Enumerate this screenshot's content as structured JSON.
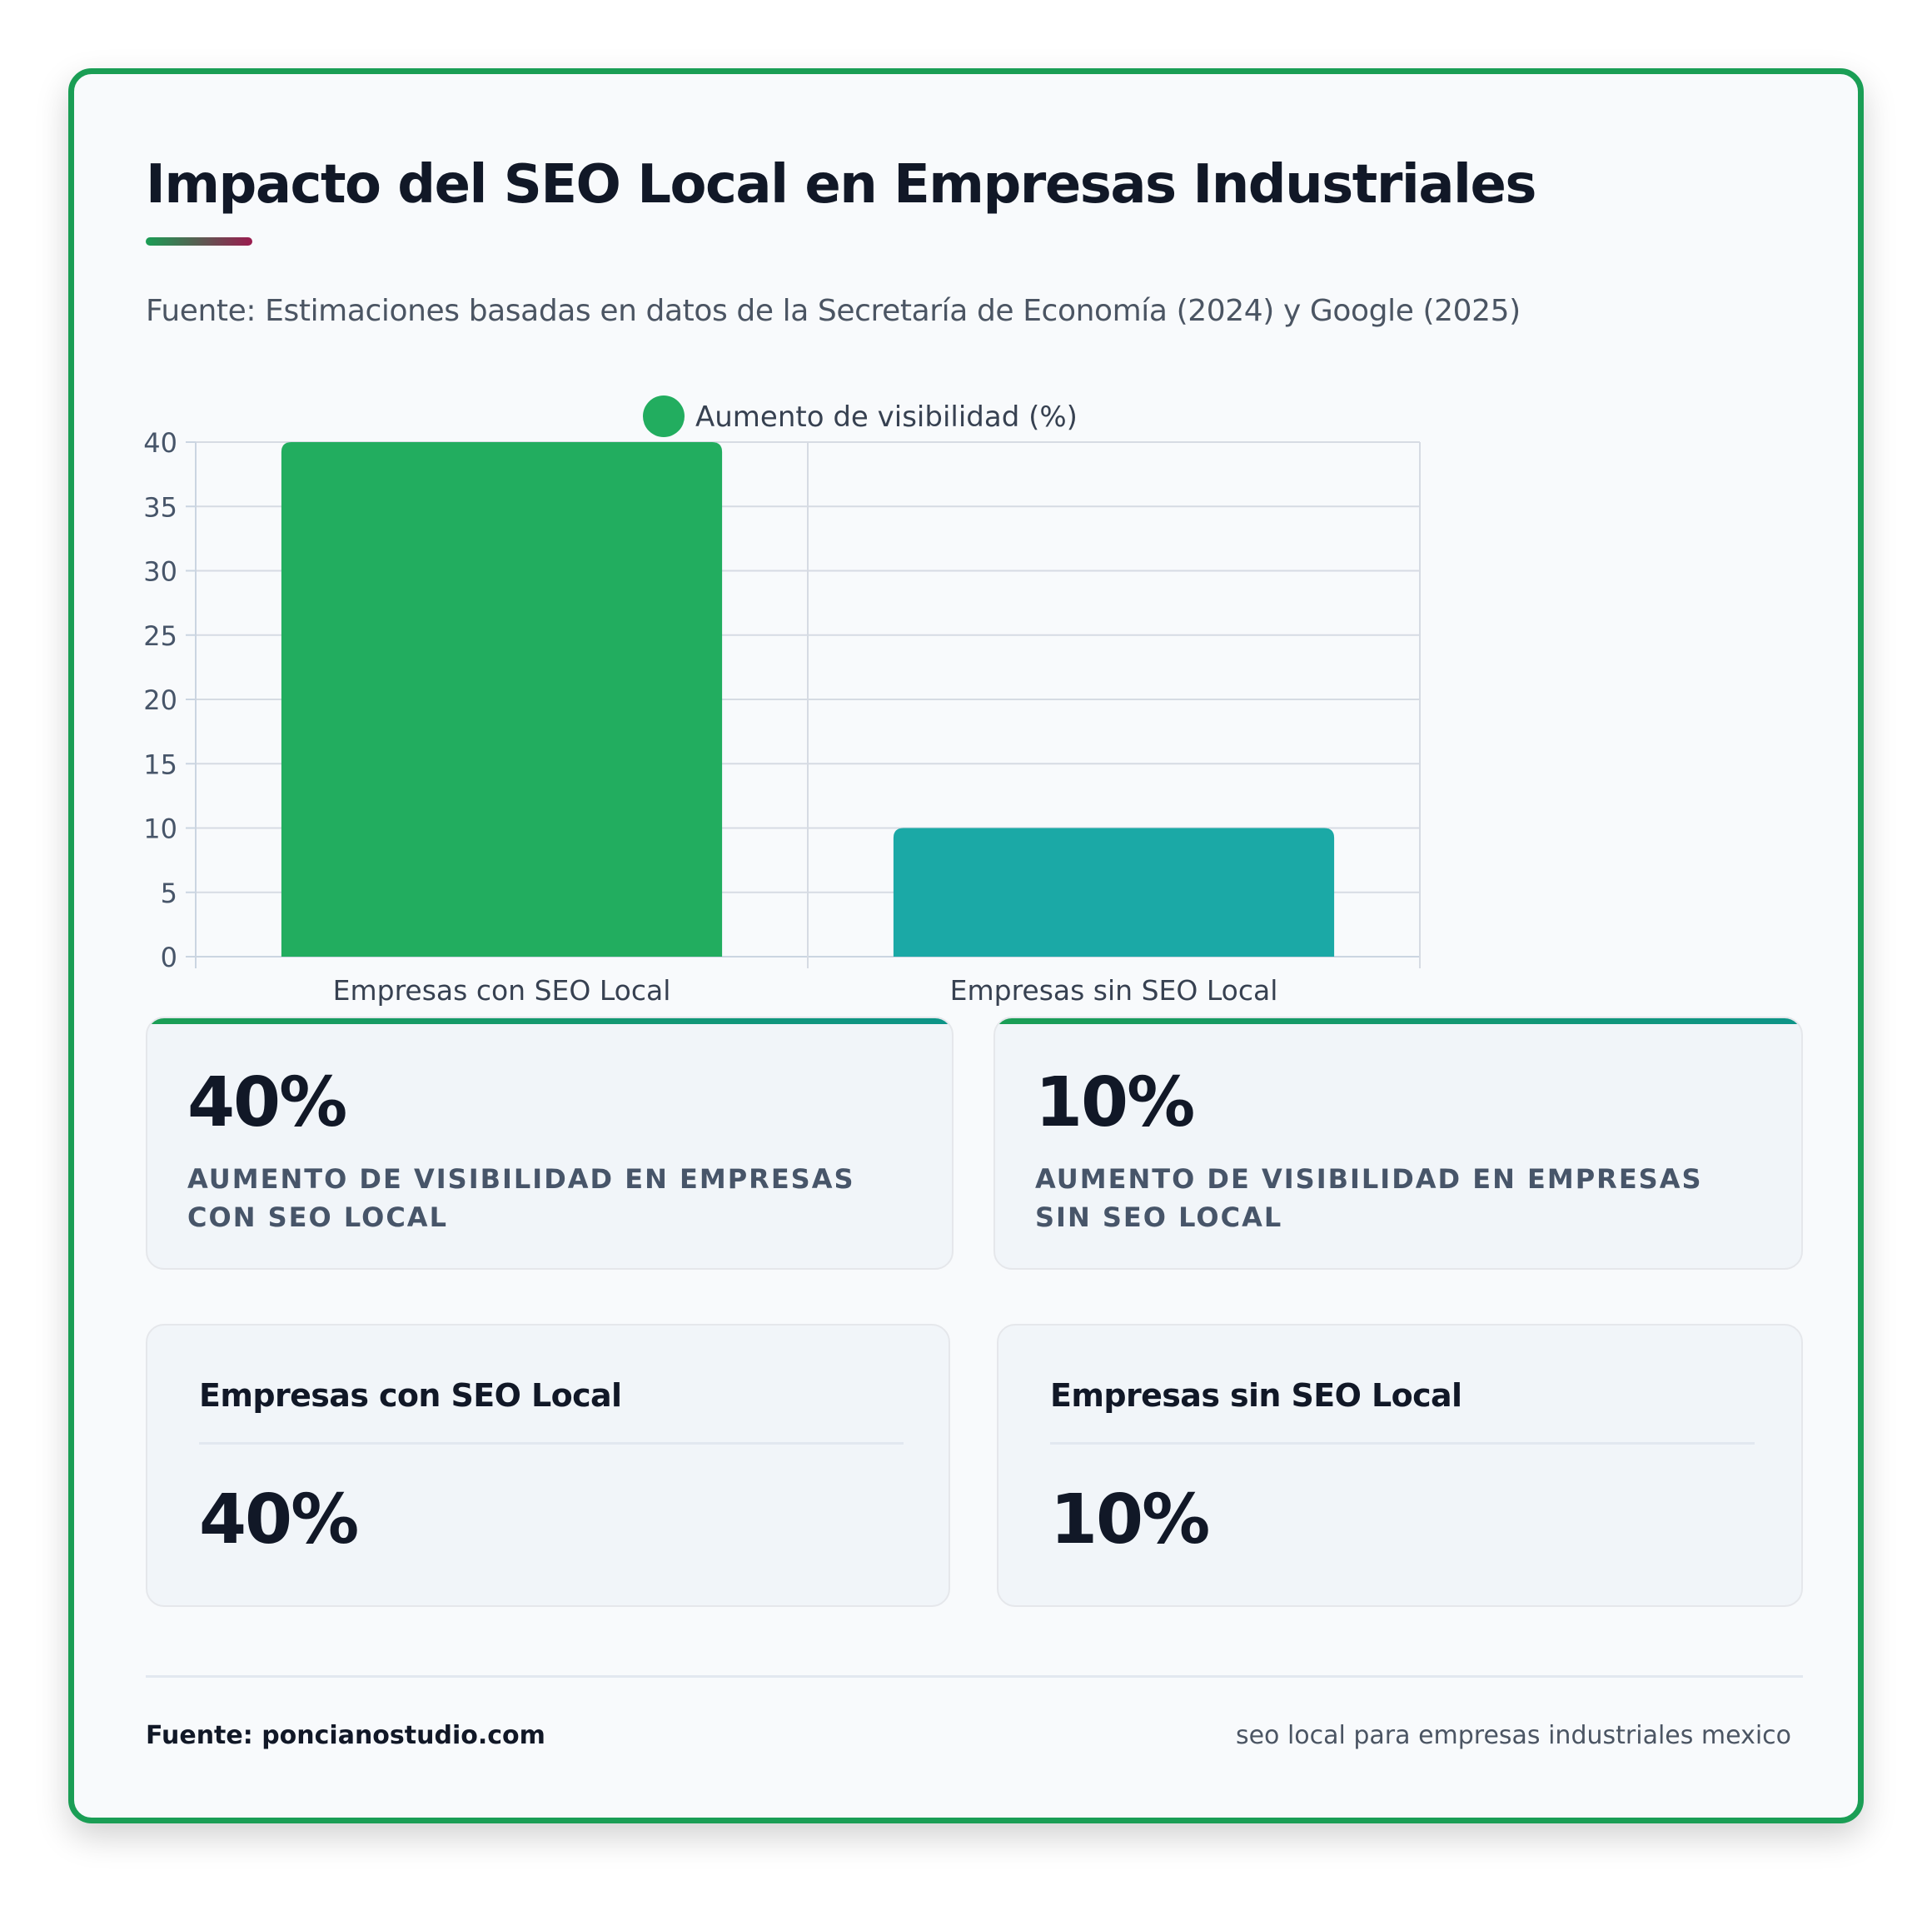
{
  "header": {
    "title": "Impacto del SEO Local en Empresas Industriales",
    "subtitle": "Fuente: Estimaciones basadas en datos de la Secretaría de Economía (2024) y Google (2025)"
  },
  "chart_data": {
    "type": "bar",
    "categories": [
      "Empresas con SEO Local",
      "Empresas sin SEO Local"
    ],
    "series": [
      {
        "name": "Aumento de visibilidad (%)",
        "values": [
          40,
          10
        ]
      }
    ],
    "bar_colors": [
      "#22ad5f",
      "#1ba9a6"
    ],
    "legend_color": "#22ad5f",
    "ylim": [
      0,
      40
    ],
    "yticks": [
      0,
      5,
      10,
      15,
      20,
      25,
      30,
      35,
      40
    ],
    "grid": true,
    "legend_position": "top"
  },
  "stats": [
    {
      "value": "40%",
      "label": "Aumento de visibilidad en empresas con SEO Local"
    },
    {
      "value": "10%",
      "label": "Aumento de visibilidad en empresas sin SEO Local"
    }
  ],
  "comparison": [
    {
      "title": "Empresas con SEO Local",
      "value": "40%"
    },
    {
      "title": "Empresas sin SEO Local",
      "value": "10%"
    }
  ],
  "footer": {
    "source": "Fuente: poncianostudio.com",
    "keywords": "seo local para empresas industriales mexico"
  }
}
